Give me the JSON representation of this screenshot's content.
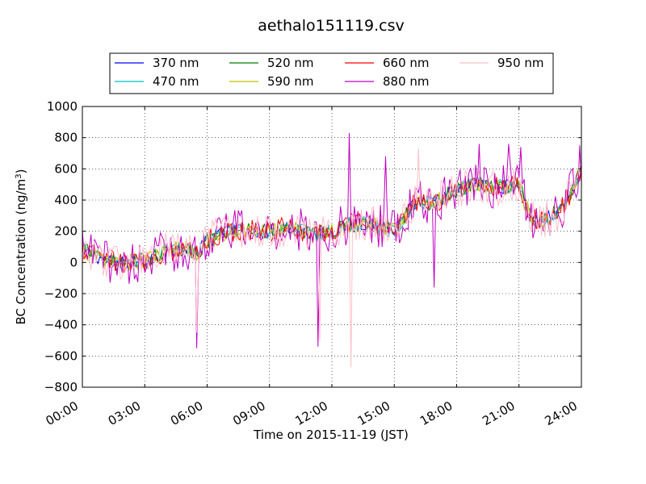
{
  "chart_data": {
    "type": "line",
    "title": "aethalo151119.csv",
    "xlabel": "Time on 2015-11-19 (JST)",
    "ylabel_main": "BC Concentration (ng/m",
    "ylabel_sup": "3",
    "ylabel_close": ")",
    "xlim": [
      "00:00",
      "24:00"
    ],
    "ylim": [
      -800,
      1000
    ],
    "x_ticks": [
      "00:00",
      "03:00",
      "06:00",
      "09:00",
      "12:00",
      "15:00",
      "18:00",
      "21:00",
      "24:00"
    ],
    "y_ticks": [
      "−800",
      "−600",
      "−400",
      "−200",
      "0",
      "200",
      "400",
      "600",
      "800",
      "1000"
    ],
    "grid": true,
    "legend_position": "top-center",
    "x_unit": "hours",
    "anchors_x": [
      0,
      1,
      2,
      3,
      4,
      5,
      5.5,
      6,
      7,
      8,
      9,
      10,
      11,
      12,
      13,
      14,
      15,
      16,
      17,
      18,
      19,
      20,
      21,
      21.5,
      22,
      23,
      24
    ],
    "series": [
      {
        "name": "370 nm",
        "color": "#0000ff",
        "values": [
          80,
          20,
          -10,
          10,
          70,
          90,
          60,
          140,
          200,
          210,
          200,
          230,
          180,
          200,
          250,
          250,
          200,
          380,
          390,
          470,
          510,
          480,
          500,
          300,
          260,
          330,
          580
        ]
      },
      {
        "name": "470 nm",
        "color": "#00bfbf",
        "values": [
          80,
          20,
          -10,
          10,
          70,
          90,
          60,
          140,
          200,
          210,
          200,
          230,
          180,
          200,
          250,
          250,
          200,
          380,
          390,
          470,
          510,
          480,
          500,
          300,
          260,
          330,
          580
        ]
      },
      {
        "name": "520 nm",
        "color": "#008000",
        "values": [
          80,
          20,
          -10,
          10,
          70,
          90,
          60,
          140,
          200,
          210,
          200,
          230,
          180,
          200,
          250,
          250,
          200,
          380,
          390,
          470,
          510,
          480,
          500,
          300,
          260,
          330,
          580
        ]
      },
      {
        "name": "590 nm",
        "color": "#bfbf00",
        "values": [
          80,
          20,
          -10,
          10,
          70,
          90,
          60,
          140,
          200,
          210,
          200,
          230,
          180,
          200,
          250,
          250,
          200,
          380,
          390,
          470,
          510,
          480,
          500,
          300,
          260,
          330,
          580
        ]
      },
      {
        "name": "660 nm",
        "color": "#ff0000",
        "values": [
          80,
          20,
          -10,
          10,
          70,
          90,
          60,
          140,
          200,
          210,
          200,
          230,
          180,
          200,
          250,
          250,
          200,
          380,
          390,
          470,
          510,
          480,
          500,
          300,
          260,
          330,
          580
        ]
      },
      {
        "name": "880 nm",
        "color": "#bf00bf",
        "values": [
          80,
          20,
          -10,
          10,
          70,
          90,
          60,
          140,
          200,
          210,
          200,
          230,
          180,
          200,
          250,
          250,
          200,
          380,
          390,
          470,
          510,
          480,
          500,
          300,
          260,
          330,
          580
        ]
      },
      {
        "name": "950 nm",
        "color": "#ffc0cb",
        "values": [
          80,
          20,
          -10,
          10,
          70,
          90,
          60,
          140,
          200,
          210,
          200,
          230,
          180,
          200,
          250,
          250,
          200,
          380,
          390,
          470,
          510,
          480,
          500,
          300,
          260,
          330,
          580
        ]
      }
    ],
    "spikes": [
      {
        "series": "880 nm",
        "x": 5.5,
        "value": -550
      },
      {
        "series": "950 nm",
        "x": 5.5,
        "value": -450
      },
      {
        "series": "880 nm",
        "x": 11.35,
        "value": -540
      },
      {
        "series": "950 nm",
        "x": 11.4,
        "value": -500
      },
      {
        "series": "880 nm",
        "x": 12.85,
        "value": 830
      },
      {
        "series": "950 nm",
        "x": 12.9,
        "value": -670
      },
      {
        "series": "880 nm",
        "x": 14.6,
        "value": 680
      },
      {
        "series": "950 nm",
        "x": 16.2,
        "value": 730
      },
      {
        "series": "880 nm",
        "x": 16.9,
        "value": -160
      },
      {
        "series": "880 nm",
        "x": 19.1,
        "value": 760
      },
      {
        "series": "880 nm",
        "x": 20.5,
        "value": 760
      },
      {
        "series": "880 nm",
        "x": 21.1,
        "value": 740
      },
      {
        "series": "880 nm",
        "x": 23.9,
        "value": 750
      }
    ]
  }
}
